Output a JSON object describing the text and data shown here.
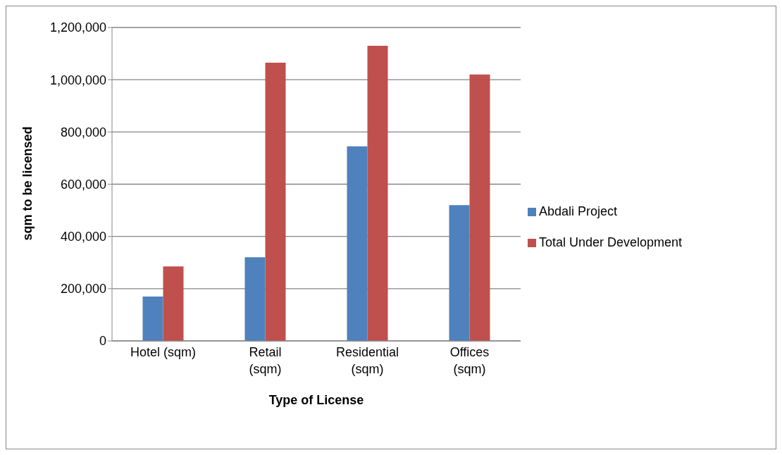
{
  "chart_data": {
    "type": "bar",
    "categories": [
      "Hotel (sqm)",
      "Retail (sqm)",
      "Residential (sqm)",
      "Offices (sqm)"
    ],
    "series": [
      {
        "name": "Abdali Project",
        "color": "#4f81bd",
        "values": [
          170000,
          320000,
          745000,
          520000
        ]
      },
      {
        "name": "Total Under Development",
        "color": "#c0504d",
        "values": [
          285000,
          1065000,
          1130000,
          1020000
        ]
      }
    ],
    "xlabel": "Type of License",
    "ylabel": "sqm to be licensed",
    "ylim": [
      0,
      1200000
    ],
    "yticks": [
      0,
      {
        "value": 200000,
        "label": "200,000"
      },
      {
        "value": 400000,
        "label": "400,000"
      },
      {
        "value": 600000,
        "label": "600,000"
      },
      {
        "value": 800000,
        "label": "800,000"
      },
      {
        "value": 1000000,
        "label": "1,000,000"
      },
      {
        "value": 1200000,
        "label": "1,200,000"
      }
    ],
    "grid": "y",
    "legend": "right"
  }
}
